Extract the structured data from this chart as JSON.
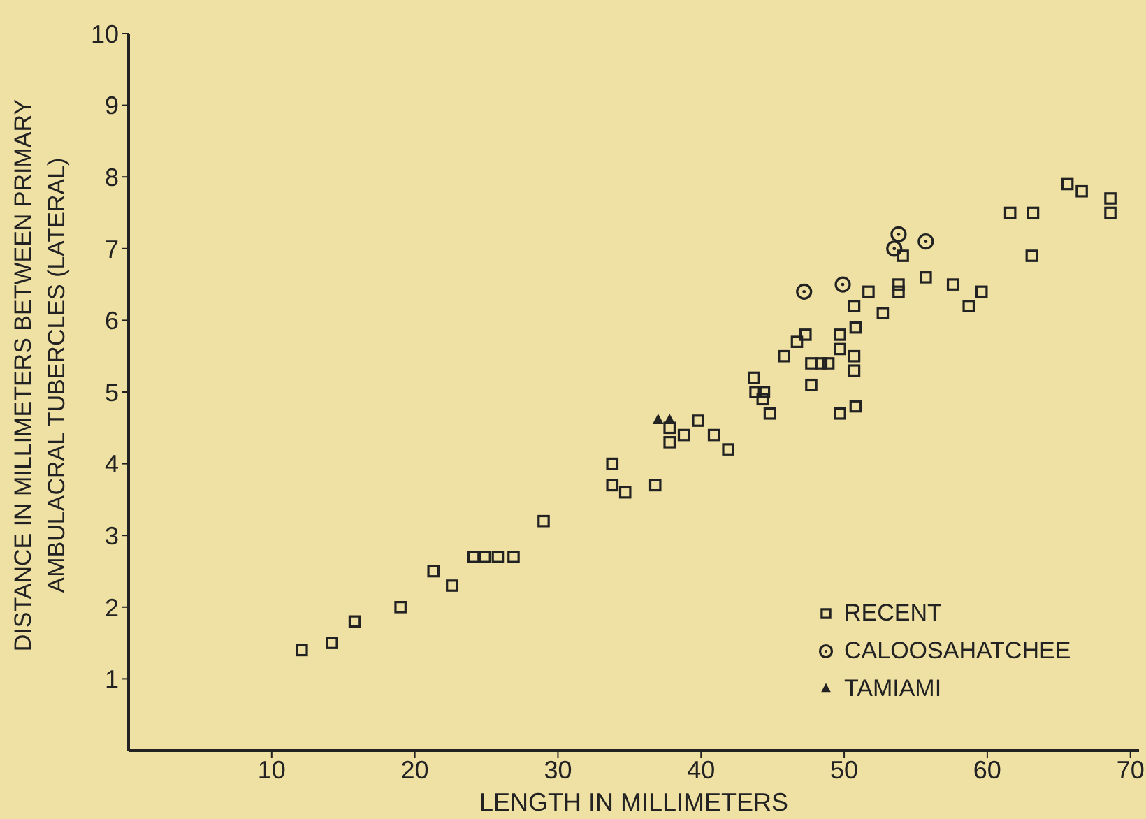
{
  "chart_data": {
    "type": "scatter",
    "xlabel": "LENGTH IN MILLIMETERS",
    "ylabel": "DISTANCE IN MILLIMETERS BETWEEN PRIMARY\nAMBULACRAL TUBERCLES (LATERAL)",
    "xlim": [
      0,
      70.6
    ],
    "xticks": [
      10,
      20,
      30,
      40,
      50,
      60,
      70
    ],
    "ylim": [
      0,
      10
    ],
    "yticks": [
      1,
      2,
      3,
      4,
      5,
      6,
      7,
      8,
      9,
      10
    ],
    "grid": false,
    "legend": "bottom right",
    "series": [
      {
        "name": "RECENT",
        "color": "#222222",
        "marker": "square",
        "x": [
          12.1,
          14.2,
          15.8,
          19.0,
          21.3,
          22.6,
          24.1,
          24.9,
          25.8,
          26.9,
          29.0,
          33.8,
          33.8,
          34.7,
          36.8,
          37.8,
          37.8,
          38.8,
          39.8,
          40.9,
          41.9,
          43.7,
          43.8,
          44.4,
          44.3,
          44.8,
          45.8,
          46.7,
          47.3,
          47.7,
          48.4,
          48.9,
          47.7,
          49.7,
          49.7,
          50.8,
          50.7,
          50.7,
          50.8,
          49.7,
          52.7,
          50.7,
          51.7,
          54.1,
          53.8,
          53.8,
          55.7,
          57.6,
          59.6,
          58.7,
          63.1,
          61.6,
          63.2,
          65.6,
          66.6,
          68.6,
          68.6
        ],
        "values": [
          1.4,
          1.5,
          1.8,
          2.0,
          2.5,
          2.3,
          2.7,
          2.7,
          2.7,
          2.7,
          3.2,
          4.0,
          3.7,
          3.6,
          3.7,
          4.5,
          4.3,
          4.4,
          4.6,
          4.4,
          4.2,
          5.2,
          5.0,
          5.0,
          4.9,
          4.7,
          5.5,
          5.7,
          5.8,
          5.4,
          5.4,
          5.4,
          5.1,
          5.8,
          5.6,
          5.9,
          5.5,
          5.3,
          4.8,
          4.7,
          6.1,
          6.2,
          6.4,
          6.9,
          6.5,
          6.4,
          6.6,
          6.5,
          6.4,
          6.2,
          6.9,
          7.5,
          7.5,
          7.9,
          7.8,
          7.7,
          7.5
        ]
      },
      {
        "name": "CALOOSAHATCHEE",
        "color": "#222222",
        "marker": "circle",
        "x": [
          47.2,
          49.9,
          53.8,
          53.5,
          55.7
        ],
        "values": [
          6.4,
          6.5,
          7.2,
          7.0,
          7.1
        ]
      },
      {
        "name": "TAMIAMI",
        "color": "#222222",
        "marker": "triangle",
        "x": [
          37.0,
          37.8
        ],
        "values": [
          4.6,
          4.6
        ]
      }
    ]
  }
}
